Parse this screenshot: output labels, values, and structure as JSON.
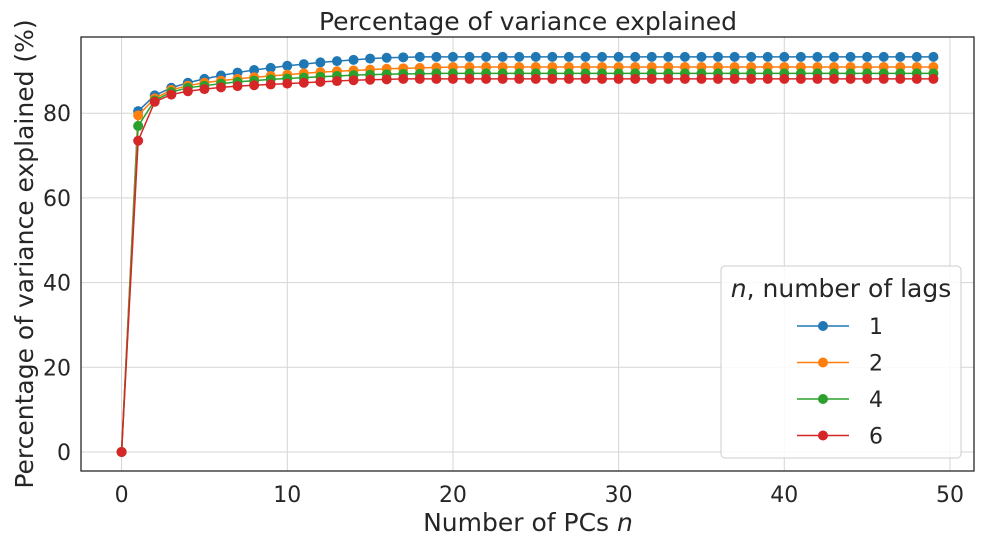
{
  "chart_data": {
    "type": "line",
    "title": "Percentage of variance explained",
    "xlabel_prefix": "Number of PCs ",
    "xlabel_var": "n",
    "ylabel": "Percentage of variance explained (%)",
    "xlim": [
      -2.45,
      51.45
    ],
    "ylim": [
      -4.5,
      98.0
    ],
    "xticks": [
      "0",
      "10",
      "20",
      "30",
      "40",
      "50"
    ],
    "yticks": [
      "0",
      "20",
      "40",
      "60",
      "80"
    ],
    "grid": true,
    "legend": {
      "title_var": "n",
      "title_rest": ", number of lags",
      "placement": "lower-right"
    },
    "series": [
      {
        "name": "1",
        "color": "#1f77b4",
        "values": [
          0,
          80.5,
          84.2,
          86.0,
          87.2,
          88.1,
          88.9,
          89.6,
          90.2,
          90.7,
          91.2,
          91.6,
          92.0,
          92.3,
          92.6,
          92.9,
          93.1,
          93.2,
          93.3,
          93.3,
          93.3,
          93.3,
          93.3,
          93.3,
          93.3,
          93.3,
          93.3,
          93.3,
          93.3,
          93.3,
          93.3,
          93.3,
          93.3,
          93.3,
          93.3,
          93.3,
          93.3,
          93.3,
          93.3,
          93.3,
          93.3,
          93.3,
          93.3,
          93.3,
          93.3,
          93.3,
          93.3,
          93.3,
          93.3,
          93.3
        ]
      },
      {
        "name": "2",
        "color": "#ff7f0e",
        "values": [
          0,
          79.5,
          83.5,
          85.5,
          86.5,
          87.2,
          87.7,
          88.1,
          88.5,
          88.8,
          89.1,
          89.4,
          89.7,
          89.9,
          90.1,
          90.3,
          90.5,
          90.6,
          90.7,
          90.8,
          90.9,
          90.9,
          90.9,
          90.9,
          90.9,
          90.9,
          90.9,
          90.9,
          90.9,
          90.9,
          90.9,
          90.9,
          90.9,
          90.9,
          90.9,
          90.9,
          90.9,
          90.9,
          90.9,
          90.9,
          90.9,
          90.9,
          90.9,
          90.9,
          90.9,
          90.9,
          90.9,
          90.9,
          90.9,
          90.9
        ]
      },
      {
        "name": "4",
        "color": "#2ca02c",
        "values": [
          0,
          77.0,
          83.0,
          85.0,
          86.0,
          86.5,
          87.0,
          87.4,
          87.7,
          88.0,
          88.2,
          88.4,
          88.6,
          88.8,
          89.0,
          89.1,
          89.2,
          89.3,
          89.3,
          89.4,
          89.4,
          89.4,
          89.4,
          89.4,
          89.4,
          89.4,
          89.4,
          89.4,
          89.4,
          89.4,
          89.4,
          89.4,
          89.4,
          89.4,
          89.4,
          89.4,
          89.4,
          89.4,
          89.4,
          89.4,
          89.4,
          89.4,
          89.4,
          89.4,
          89.4,
          89.4,
          89.4,
          89.4,
          89.4,
          89.4
        ]
      },
      {
        "name": "6",
        "color": "#d62728",
        "values": [
          0,
          73.5,
          82.7,
          84.4,
          85.2,
          85.7,
          86.1,
          86.4,
          86.6,
          86.8,
          87.0,
          87.2,
          87.4,
          87.6,
          87.8,
          87.9,
          88.0,
          88.1,
          88.1,
          88.1,
          88.1,
          88.1,
          88.1,
          88.1,
          88.1,
          88.1,
          88.1,
          88.1,
          88.1,
          88.1,
          88.1,
          88.1,
          88.1,
          88.1,
          88.1,
          88.1,
          88.1,
          88.1,
          88.1,
          88.1,
          88.1,
          88.1,
          88.1,
          88.1,
          88.1,
          88.1,
          88.1,
          88.1,
          88.1,
          88.1
        ]
      }
    ]
  }
}
